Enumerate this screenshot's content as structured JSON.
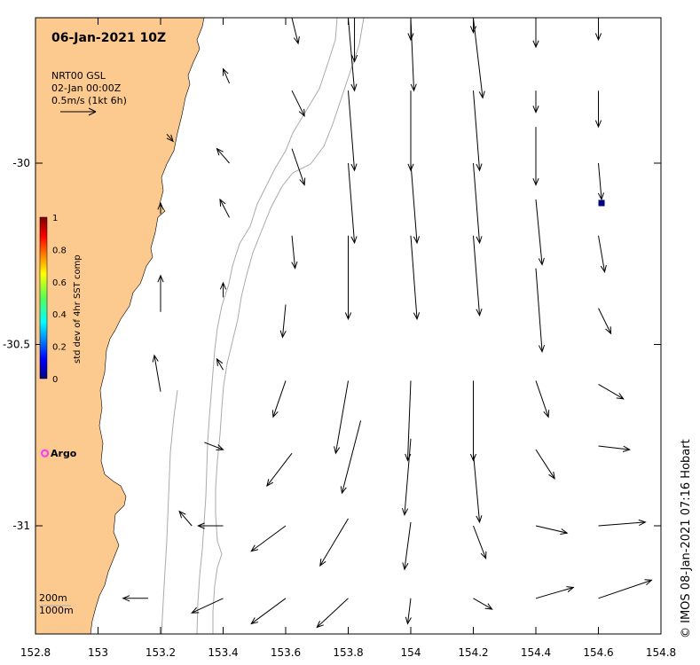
{
  "title": "06-Jan-2021 10Z",
  "legend": {
    "line1": "NRT00 GSL",
    "line2": "02-Jan 00:00Z",
    "line3": "0.5m/s (1kt 6h)"
  },
  "colorbar": {
    "label": "std dev of 4hr SST comp",
    "ticks": [
      "0",
      "0.2",
      "0.4",
      "0.6",
      "0.8",
      "1"
    ]
  },
  "argo_label": "Argo",
  "depth_legend": {
    "a": "200m",
    "b": "1000m"
  },
  "credit": "©  IMOS 08-Jan-2021 07:16 Hobart",
  "axes": {
    "x_ticks": [
      "152.8",
      "153",
      "153.2",
      "153.4",
      "153.6",
      "153.8",
      "154",
      "154.2",
      "154.4",
      "154.6",
      "154.8"
    ],
    "y_ticks": [
      "-30",
      "-30.5",
      "-31"
    ]
  },
  "colors": {
    "land": "#fcc98f",
    "isobath": "#aaaaaa",
    "argo": "#ff33ff",
    "marker": "#000080"
  },
  "chart_data": {
    "type": "vector-field-map",
    "lon_range": [
      152.8,
      154.8
    ],
    "lat_range": [
      -31.25,
      -29.6
    ],
    "vectors": [
      {
        "lon": 153.62,
        "lat": -29.6,
        "dlon": 0.02,
        "dlat": -0.07
      },
      {
        "lon": 153.82,
        "lat": -29.52,
        "dlon": 0.0,
        "dlat": -0.2
      },
      {
        "lon": 154.0,
        "lat": -29.6,
        "dlon": 0.0,
        "dlat": -0.06
      },
      {
        "lon": 154.2,
        "lat": -29.6,
        "dlon": 0.0,
        "dlat": -0.04
      },
      {
        "lon": 154.4,
        "lat": -29.6,
        "dlon": 0.0,
        "dlat": -0.08
      },
      {
        "lon": 154.6,
        "lat": -29.6,
        "dlon": 0.0,
        "dlat": -0.06
      },
      {
        "lon": 153.42,
        "lat": -29.78,
        "dlon": -0.02,
        "dlat": 0.04
      },
      {
        "lon": 153.62,
        "lat": -29.8,
        "dlon": 0.04,
        "dlat": -0.07
      },
      {
        "lon": 153.8,
        "lat": -29.6,
        "dlon": 0.02,
        "dlat": -0.2
      },
      {
        "lon": 154.0,
        "lat": -29.6,
        "dlon": 0.01,
        "dlat": -0.2
      },
      {
        "lon": 154.2,
        "lat": -29.6,
        "dlon": 0.03,
        "dlat": -0.22
      },
      {
        "lon": 154.4,
        "lat": -29.8,
        "dlon": 0.0,
        "dlat": -0.06
      },
      {
        "lon": 154.6,
        "lat": -29.8,
        "dlon": 0.0,
        "dlat": -0.1
      },
      {
        "lon": 153.22,
        "lat": -29.92,
        "dlon": 0.02,
        "dlat": -0.02
      },
      {
        "lon": 153.42,
        "lat": -30.0,
        "dlon": -0.04,
        "dlat": 0.04
      },
      {
        "lon": 153.62,
        "lat": -29.96,
        "dlon": 0.04,
        "dlat": -0.1
      },
      {
        "lon": 153.8,
        "lat": -29.8,
        "dlon": 0.02,
        "dlat": -0.22
      },
      {
        "lon": 154.0,
        "lat": -29.8,
        "dlon": 0.0,
        "dlat": -0.22
      },
      {
        "lon": 154.2,
        "lat": -29.8,
        "dlon": 0.02,
        "dlat": -0.22
      },
      {
        "lon": 154.4,
        "lat": -29.9,
        "dlon": 0.0,
        "dlat": -0.16
      },
      {
        "lon": 154.6,
        "lat": -30.0,
        "dlon": 0.01,
        "dlat": -0.1
      },
      {
        "lon": 153.2,
        "lat": -30.14,
        "dlon": 0.0,
        "dlat": 0.03
      },
      {
        "lon": 153.42,
        "lat": -30.15,
        "dlon": -0.03,
        "dlat": 0.05
      },
      {
        "lon": 153.62,
        "lat": -30.2,
        "dlon": 0.01,
        "dlat": -0.09
      },
      {
        "lon": 153.8,
        "lat": -30.0,
        "dlon": 0.02,
        "dlat": -0.22
      },
      {
        "lon": 154.0,
        "lat": -30.0,
        "dlon": 0.02,
        "dlat": -0.22
      },
      {
        "lon": 154.2,
        "lat": -30.0,
        "dlon": 0.02,
        "dlat": -0.22
      },
      {
        "lon": 154.4,
        "lat": -30.1,
        "dlon": 0.02,
        "dlat": -0.18
      },
      {
        "lon": 154.6,
        "lat": -30.2,
        "dlon": 0.02,
        "dlat": -0.1
      },
      {
        "lon": 153.2,
        "lat": -30.41,
        "dlon": 0.0,
        "dlat": 0.1
      },
      {
        "lon": 153.4,
        "lat": -30.37,
        "dlon": 0.0,
        "dlat": 0.04
      },
      {
        "lon": 153.6,
        "lat": -30.39,
        "dlon": -0.01,
        "dlat": -0.09
      },
      {
        "lon": 153.8,
        "lat": -30.2,
        "dlon": 0.0,
        "dlat": -0.23
      },
      {
        "lon": 154.0,
        "lat": -30.2,
        "dlon": 0.02,
        "dlat": -0.23
      },
      {
        "lon": 154.2,
        "lat": -30.2,
        "dlon": 0.02,
        "dlat": -0.22
      },
      {
        "lon": 154.4,
        "lat": -30.29,
        "dlon": 0.02,
        "dlat": -0.23
      },
      {
        "lon": 154.6,
        "lat": -30.4,
        "dlon": 0.04,
        "dlat": -0.07
      },
      {
        "lon": 153.2,
        "lat": -30.63,
        "dlon": -0.02,
        "dlat": 0.1
      },
      {
        "lon": 153.4,
        "lat": -30.57,
        "dlon": -0.02,
        "dlat": 0.03
      },
      {
        "lon": 153.6,
        "lat": -30.6,
        "dlon": -0.04,
        "dlat": -0.1
      },
      {
        "lon": 153.8,
        "lat": -30.6,
        "dlon": -0.04,
        "dlat": -0.2
      },
      {
        "lon": 154.0,
        "lat": -30.6,
        "dlon": -0.01,
        "dlat": -0.22
      },
      {
        "lon": 154.2,
        "lat": -30.6,
        "dlon": 0.0,
        "dlat": -0.22
      },
      {
        "lon": 154.4,
        "lat": -30.6,
        "dlon": 0.04,
        "dlat": -0.1
      },
      {
        "lon": 154.6,
        "lat": -30.61,
        "dlon": 0.08,
        "dlat": -0.04
      },
      {
        "lon": 153.34,
        "lat": -30.77,
        "dlon": 0.06,
        "dlat": -0.02
      },
      {
        "lon": 153.62,
        "lat": -30.8,
        "dlon": -0.08,
        "dlat": -0.09
      },
      {
        "lon": 153.84,
        "lat": -30.71,
        "dlon": -0.06,
        "dlat": -0.2
      },
      {
        "lon": 154.0,
        "lat": -30.76,
        "dlon": -0.02,
        "dlat": -0.21
      },
      {
        "lon": 154.2,
        "lat": -30.8,
        "dlon": 0.02,
        "dlat": -0.19
      },
      {
        "lon": 154.4,
        "lat": -30.79,
        "dlon": 0.06,
        "dlat": -0.08
      },
      {
        "lon": 154.6,
        "lat": -30.78,
        "dlon": 0.1,
        "dlat": -0.01
      },
      {
        "lon": 153.3,
        "lat": -31.0,
        "dlon": -0.04,
        "dlat": 0.04
      },
      {
        "lon": 153.4,
        "lat": -31.0,
        "dlon": -0.08,
        "dlat": 0.0
      },
      {
        "lon": 153.6,
        "lat": -31.0,
        "dlon": -0.11,
        "dlat": -0.07
      },
      {
        "lon": 153.8,
        "lat": -30.98,
        "dlon": -0.09,
        "dlat": -0.13
      },
      {
        "lon": 154.0,
        "lat": -30.99,
        "dlon": -0.02,
        "dlat": -0.13
      },
      {
        "lon": 154.2,
        "lat": -31.0,
        "dlon": 0.04,
        "dlat": -0.09
      },
      {
        "lon": 154.4,
        "lat": -31.0,
        "dlon": 0.1,
        "dlat": -0.02
      },
      {
        "lon": 154.6,
        "lat": -31.0,
        "dlon": 0.15,
        "dlat": 0.01
      },
      {
        "lon": 153.16,
        "lat": -31.2,
        "dlon": -0.08,
        "dlat": 0.0
      },
      {
        "lon": 153.4,
        "lat": -31.2,
        "dlon": -0.1,
        "dlat": -0.04
      },
      {
        "lon": 153.6,
        "lat": -31.2,
        "dlon": -0.11,
        "dlat": -0.07
      },
      {
        "lon": 153.8,
        "lat": -31.2,
        "dlon": -0.1,
        "dlat": -0.08
      },
      {
        "lon": 154.0,
        "lat": -31.2,
        "dlon": -0.01,
        "dlat": -0.07
      },
      {
        "lon": 154.2,
        "lat": -31.2,
        "dlon": 0.06,
        "dlat": -0.03
      },
      {
        "lon": 154.4,
        "lat": -31.2,
        "dlon": 0.12,
        "dlat": 0.03
      },
      {
        "lon": 154.6,
        "lat": -31.2,
        "dlon": 0.17,
        "dlat": 0.05
      }
    ],
    "argo_float": {
      "lon": 152.83,
      "lat": -30.8
    },
    "marker": {
      "lon": 154.61,
      "lat": -30.11
    }
  }
}
